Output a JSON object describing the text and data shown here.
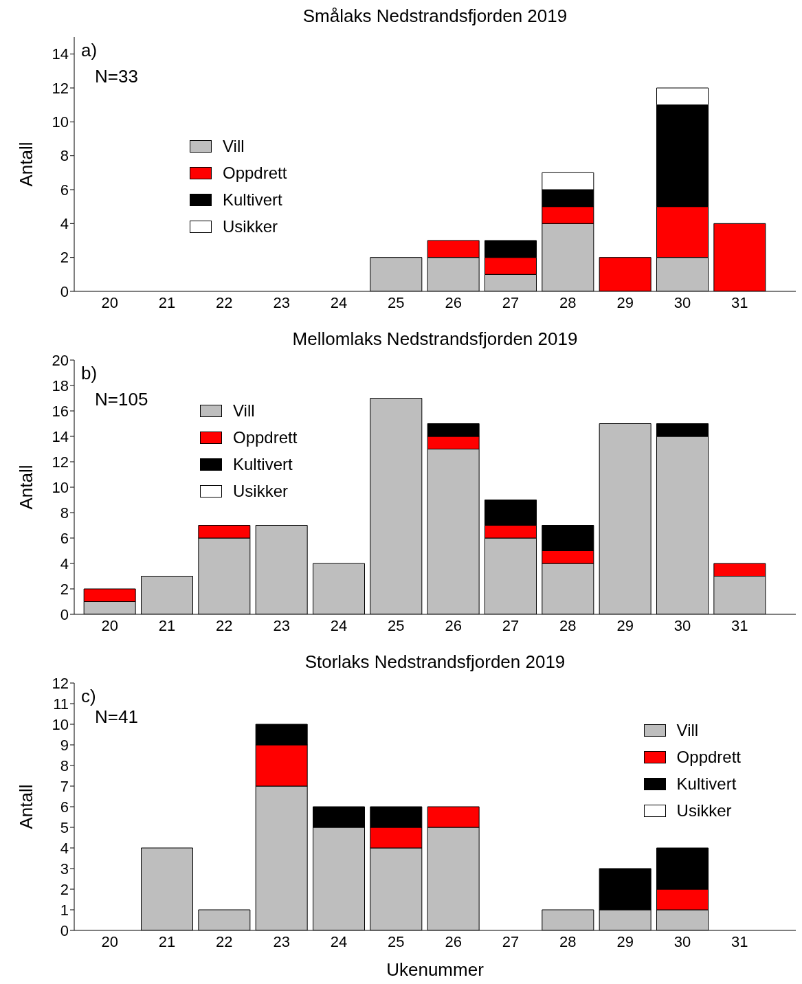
{
  "chart_data": [
    {
      "type": "bar",
      "title": "Smålaks Nedstrandsfjorden 2019",
      "ylabel": "Antall",
      "annotations": [
        "a)",
        "N=33"
      ],
      "categories": [
        "20",
        "21",
        "22",
        "23",
        "24",
        "25",
        "26",
        "27",
        "28",
        "29",
        "30",
        "31"
      ],
      "stacked": true,
      "ylim": [
        0,
        15
      ],
      "yticks": [
        0,
        2,
        4,
        6,
        8,
        10,
        12,
        14
      ],
      "grid": false,
      "legend": "left",
      "series": [
        {
          "name": "Vill",
          "color": "#bebebe",
          "values": [
            0,
            0,
            0,
            0,
            0,
            2,
            2,
            1,
            4,
            0,
            2,
            0
          ]
        },
        {
          "name": "Oppdrett",
          "color": "#ff0000",
          "values": [
            0,
            0,
            0,
            0,
            0,
            0,
            1,
            1,
            1,
            2,
            3,
            4
          ]
        },
        {
          "name": "Kultivert",
          "color": "#000000",
          "values": [
            0,
            0,
            0,
            0,
            0,
            0,
            0,
            1,
            1,
            0,
            6,
            0
          ]
        },
        {
          "name": "Usikker",
          "color": "#ffffff",
          "values": [
            0,
            0,
            0,
            0,
            0,
            0,
            0,
            0,
            1,
            0,
            1,
            0
          ]
        }
      ]
    },
    {
      "type": "bar",
      "title": "Mellomlaks Nedstrandsfjorden 2019",
      "ylabel": "Antall",
      "annotations": [
        "b)",
        "N=105"
      ],
      "categories": [
        "20",
        "21",
        "22",
        "23",
        "24",
        "25",
        "26",
        "27",
        "28",
        "29",
        "30",
        "31"
      ],
      "stacked": true,
      "ylim": [
        0,
        20
      ],
      "yticks": [
        0,
        2,
        4,
        6,
        8,
        10,
        12,
        14,
        16,
        18,
        20
      ],
      "grid": false,
      "legend": "top left",
      "series": [
        {
          "name": "Vill",
          "color": "#bebebe",
          "values": [
            1,
            3,
            6,
            7,
            4,
            17,
            13,
            6,
            4,
            15,
            14,
            3
          ]
        },
        {
          "name": "Oppdrett",
          "color": "#ff0000",
          "values": [
            1,
            0,
            1,
            0,
            0,
            0,
            1,
            1,
            1,
            0,
            0,
            1
          ]
        },
        {
          "name": "Kultivert",
          "color": "#000000",
          "values": [
            0,
            0,
            0,
            0,
            0,
            0,
            1,
            2,
            2,
            0,
            1,
            0
          ]
        },
        {
          "name": "Usikker",
          "color": "#ffffff",
          "values": [
            0,
            0,
            0,
            0,
            0,
            0,
            0,
            0,
            0,
            0,
            0,
            0
          ]
        }
      ]
    },
    {
      "type": "bar",
      "title": "Storlaks Nedstrandsfjorden 2019",
      "xlabel": "Ukenummer",
      "ylabel": "Antall",
      "annotations": [
        "c)",
        "N=41"
      ],
      "categories": [
        "20",
        "21",
        "22",
        "23",
        "24",
        "25",
        "26",
        "27",
        "28",
        "29",
        "30",
        "31"
      ],
      "stacked": true,
      "ylim": [
        0,
        12
      ],
      "yticks": [
        0,
        1,
        2,
        3,
        4,
        5,
        6,
        7,
        8,
        9,
        10,
        11,
        12
      ],
      "grid": false,
      "legend": "right",
      "series": [
        {
          "name": "Vill",
          "color": "#bebebe",
          "values": [
            0,
            4,
            1,
            7,
            5,
            4,
            5,
            0,
            1,
            1,
            1,
            0
          ]
        },
        {
          "name": "Oppdrett",
          "color": "#ff0000",
          "values": [
            0,
            0,
            0,
            2,
            0,
            1,
            1,
            0,
            0,
            0,
            1,
            0
          ]
        },
        {
          "name": "Kultivert",
          "color": "#000000",
          "values": [
            0,
            0,
            0,
            1,
            1,
            1,
            0,
            0,
            0,
            2,
            2,
            0
          ]
        },
        {
          "name": "Usikker",
          "color": "#ffffff",
          "values": [
            0,
            0,
            0,
            0,
            0,
            0,
            0,
            0,
            0,
            0,
            0,
            0
          ]
        }
      ]
    }
  ]
}
